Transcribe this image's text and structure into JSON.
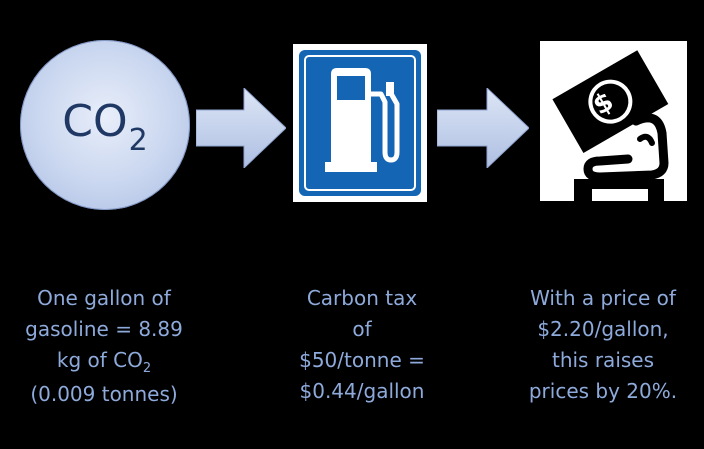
{
  "co2_circle": {
    "label_main": "CO",
    "label_sub": "2"
  },
  "captions": {
    "emissions": {
      "line1": "One gallon of",
      "line2": "gasoline = 8.89",
      "line3_pre": "kg of CO",
      "line3_sub": "2",
      "line4": "(0.009 tonnes)"
    },
    "tax": {
      "line1": "Carbon tax",
      "line2": "of",
      "line3": "$50/tonne =",
      "line4": "$0.44/gallon"
    },
    "price": {
      "line1": "With a price of",
      "line2": "$2.20/gallon,",
      "line3": "this raises",
      "line4": "prices by 20%."
    }
  },
  "icons": {
    "pump": "fuel-pump-icon",
    "cash": "money-hand-icon",
    "cash_symbol": "$"
  },
  "colors": {
    "background": "#000000",
    "caption_text": "#8eaadb",
    "circle_fill": "#c9d6ef",
    "co2_text": "#1f3864",
    "arrow_fill": "#c9d6ef",
    "sign_blue": "#1565b5"
  }
}
